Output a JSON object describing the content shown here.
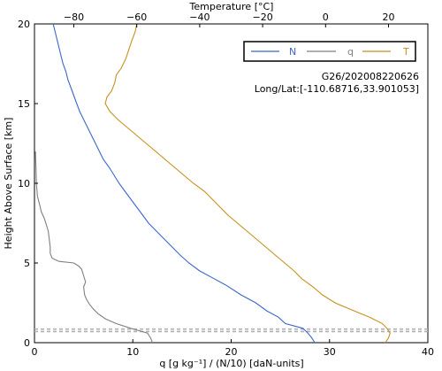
{
  "chart_data": {
    "type": "line",
    "xlabel_bottom": "q [g kg⁻¹] / (N/10) [daN-units]",
    "xlabel_top": "Temperature [°C]",
    "ylabel": "Height Above Surface [km]",
    "xlim_bottom": [
      0,
      40
    ],
    "xlim_top": [
      -92.5,
      32.5
    ],
    "ylim": [
      0,
      20
    ],
    "x_ticks_bottom": [
      0,
      10,
      20,
      30,
      40
    ],
    "x_ticks_top": [
      -80,
      -60,
      -40,
      -20,
      0,
      20
    ],
    "y_ticks": [
      0,
      5,
      10,
      15,
      20
    ],
    "grid": false,
    "legend_position": "top-right",
    "annotations": {
      "station_time": "G26/202008220626",
      "location": "Long/Lat:[-110.68716,33.901053]"
    },
    "colors": {
      "N": "#3b66cc",
      "q": "#808080",
      "T": "#c8901e",
      "dashed": "#b0b0b0"
    },
    "series": [
      {
        "name": "N",
        "axis": "bottom",
        "points": [
          [
            28.5,
            0.0
          ],
          [
            28.2,
            0.3
          ],
          [
            27.8,
            0.6
          ],
          [
            27.3,
            0.9
          ],
          [
            25.5,
            1.2
          ],
          [
            24.8,
            1.6
          ],
          [
            23.6,
            2.0
          ],
          [
            22.5,
            2.5
          ],
          [
            21.0,
            3.0
          ],
          [
            19.5,
            3.6
          ],
          [
            18.0,
            4.1
          ],
          [
            16.8,
            4.5
          ],
          [
            15.7,
            5.0
          ],
          [
            14.8,
            5.5
          ],
          [
            14.0,
            6.0
          ],
          [
            13.2,
            6.5
          ],
          [
            12.4,
            7.0
          ],
          [
            11.6,
            7.5
          ],
          [
            11.0,
            8.0
          ],
          [
            10.4,
            8.5
          ],
          [
            9.8,
            9.0
          ],
          [
            9.2,
            9.5
          ],
          [
            8.6,
            10.0
          ],
          [
            8.1,
            10.5
          ],
          [
            7.6,
            11.0
          ],
          [
            7.0,
            11.5
          ],
          [
            6.6,
            12.0
          ],
          [
            6.2,
            12.5
          ],
          [
            5.8,
            13.0
          ],
          [
            5.4,
            13.5
          ],
          [
            5.0,
            14.0
          ],
          [
            4.6,
            14.5
          ],
          [
            4.3,
            15.0
          ],
          [
            4.0,
            15.5
          ],
          [
            3.7,
            16.0
          ],
          [
            3.4,
            16.5
          ],
          [
            3.2,
            17.0
          ],
          [
            2.9,
            17.5
          ],
          [
            2.7,
            18.0
          ],
          [
            2.5,
            18.5
          ],
          [
            2.3,
            19.0
          ],
          [
            2.1,
            19.5
          ],
          [
            1.9,
            20.0
          ]
        ]
      },
      {
        "name": "q",
        "axis": "bottom",
        "points": [
          [
            12.0,
            0.0
          ],
          [
            11.8,
            0.3
          ],
          [
            11.5,
            0.6
          ],
          [
            9.8,
            0.9
          ],
          [
            8.3,
            1.2
          ],
          [
            7.2,
            1.5
          ],
          [
            6.5,
            1.8
          ],
          [
            6.0,
            2.1
          ],
          [
            5.6,
            2.4
          ],
          [
            5.3,
            2.7
          ],
          [
            5.1,
            3.0
          ],
          [
            5.0,
            3.5
          ],
          [
            5.2,
            3.8
          ],
          [
            5.0,
            4.2
          ],
          [
            4.8,
            4.6
          ],
          [
            4.5,
            4.8
          ],
          [
            4.0,
            5.0
          ],
          [
            2.5,
            5.1
          ],
          [
            1.8,
            5.3
          ],
          [
            1.6,
            5.6
          ],
          [
            1.6,
            6.0
          ],
          [
            1.5,
            6.5
          ],
          [
            1.4,
            7.0
          ],
          [
            1.2,
            7.4
          ],
          [
            1.0,
            7.8
          ],
          [
            0.7,
            8.2
          ],
          [
            0.5,
            8.7
          ],
          [
            0.3,
            9.2
          ],
          [
            0.2,
            10.0
          ],
          [
            0.15,
            11.0
          ],
          [
            0.1,
            12.0
          ]
        ]
      },
      {
        "name": "T",
        "axis": "top",
        "points": [
          [
            19.0,
            0.0
          ],
          [
            20.0,
            0.3
          ],
          [
            20.5,
            0.6
          ],
          [
            19.5,
            0.9
          ],
          [
            18.0,
            1.2
          ],
          [
            14.0,
            1.6
          ],
          [
            9.0,
            2.0
          ],
          [
            3.0,
            2.5
          ],
          [
            -1.0,
            3.0
          ],
          [
            -4.0,
            3.5
          ],
          [
            -7.5,
            4.0
          ],
          [
            -10.0,
            4.5
          ],
          [
            -13.0,
            5.0
          ],
          [
            -16.0,
            5.5
          ],
          [
            -19.0,
            6.0
          ],
          [
            -22.0,
            6.5
          ],
          [
            -25.0,
            7.0
          ],
          [
            -28.0,
            7.5
          ],
          [
            -31.0,
            8.0
          ],
          [
            -33.5,
            8.5
          ],
          [
            -36.0,
            9.0
          ],
          [
            -38.5,
            9.5
          ],
          [
            -42.0,
            10.0
          ],
          [
            -45.0,
            10.5
          ],
          [
            -48.0,
            11.0
          ],
          [
            -51.0,
            11.5
          ],
          [
            -54.0,
            12.0
          ],
          [
            -57.0,
            12.5
          ],
          [
            -60.0,
            13.0
          ],
          [
            -63.0,
            13.5
          ],
          [
            -66.0,
            14.0
          ],
          [
            -68.5,
            14.5
          ],
          [
            -70.0,
            15.0
          ],
          [
            -69.5,
            15.4
          ],
          [
            -68.0,
            15.8
          ],
          [
            -67.0,
            16.3
          ],
          [
            -66.5,
            16.8
          ],
          [
            -65.0,
            17.2
          ],
          [
            -63.5,
            17.8
          ],
          [
            -62.5,
            18.4
          ],
          [
            -61.5,
            19.0
          ],
          [
            -60.5,
            19.5
          ],
          [
            -60.0,
            20.0
          ]
        ]
      }
    ],
    "dashed_lines_y": [
      0.7,
      0.85
    ]
  }
}
